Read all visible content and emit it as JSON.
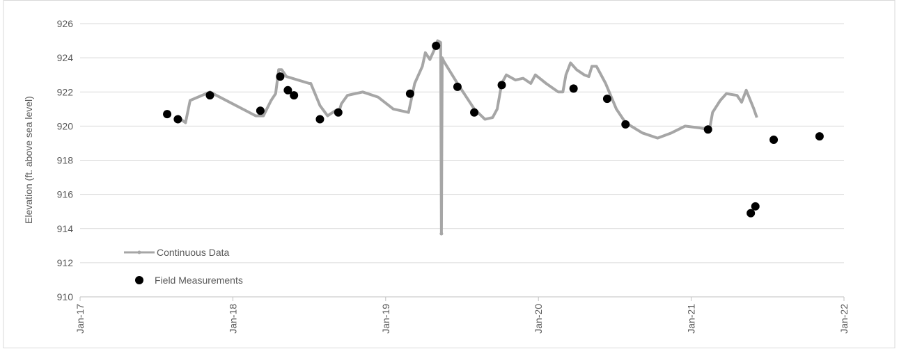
{
  "chart_data": {
    "type": "line",
    "y_label": "Elevation (ft. above sea level)",
    "xlim": [
      2017,
      2022
    ],
    "xticks": [
      {
        "value": 2017,
        "label": "Jan-17"
      },
      {
        "value": 2018,
        "label": "Jan-18"
      },
      {
        "value": 2019,
        "label": "Jan-19"
      },
      {
        "value": 2020,
        "label": "Jan-20"
      },
      {
        "value": 2021,
        "label": "Jan-21"
      },
      {
        "value": 2022,
        "label": "Jan-22"
      }
    ],
    "ylim": [
      910,
      926
    ],
    "yticks": [
      910,
      912,
      914,
      916,
      918,
      920,
      922,
      924,
      926
    ],
    "grid": true,
    "legend": "lower left",
    "series": [
      {
        "name": "Continuous Data",
        "color": "#a6a6a6",
        "kind": "line",
        "x": [
          2017.66,
          2017.69,
          2017.72,
          2017.85,
          2018.15,
          2018.2,
          2018.25,
          2018.28,
          2018.3,
          2018.32,
          2018.35,
          2018.5,
          2018.51,
          2018.57,
          2018.62,
          2018.67,
          2018.69,
          2018.71,
          2018.75,
          2018.85,
          2018.95,
          2019.05,
          2019.15,
          2019.19,
          2019.24,
          2019.26,
          2019.29,
          2019.32,
          2019.34,
          2019.36,
          2019.365,
          2019.37,
          2019.38,
          2019.47,
          2019.58,
          2019.65,
          2019.7,
          2019.73,
          2019.76,
          2019.79,
          2019.85,
          2019.9,
          2019.95,
          2019.98,
          2020.05,
          2020.13,
          2020.16,
          2020.18,
          2020.21,
          2020.25,
          2020.3,
          2020.33,
          2020.35,
          2020.38,
          2020.44,
          2020.51,
          2020.57,
          2020.68,
          2020.78,
          2020.87,
          2020.96,
          2021.05,
          2021.12,
          2021.14,
          2021.19,
          2021.23,
          2021.3,
          2021.33,
          2021.36,
          2021.41,
          2021.43
        ],
        "values": [
          920.4,
          920.2,
          921.5,
          922.0,
          920.6,
          920.6,
          921.5,
          921.9,
          923.3,
          923.3,
          922.9,
          922.5,
          922.5,
          921.2,
          920.6,
          920.9,
          920.7,
          921.3,
          921.8,
          922.0,
          921.7,
          921.0,
          920.8,
          922.5,
          923.5,
          924.3,
          923.9,
          924.5,
          925.0,
          924.9,
          913.7,
          924.0,
          923.8,
          922.5,
          921.0,
          920.4,
          920.5,
          921.0,
          922.5,
          923.0,
          922.7,
          922.8,
          922.5,
          923.0,
          922.5,
          922.0,
          922.0,
          923.0,
          923.7,
          923.3,
          923.0,
          922.9,
          923.5,
          923.5,
          922.5,
          921.0,
          920.2,
          919.6,
          919.3,
          919.6,
          920.0,
          919.9,
          919.8,
          920.8,
          921.5,
          921.9,
          921.8,
          921.4,
          922.1,
          921.0,
          920.5
        ]
      },
      {
        "name": "Field Measurements",
        "color": "#000000",
        "kind": "scatter",
        "x": [
          2017.57,
          2017.64,
          2017.85,
          2018.18,
          2018.31,
          2018.36,
          2018.4,
          2018.57,
          2018.69,
          2019.16,
          2019.33,
          2019.47,
          2019.58,
          2019.76,
          2020.23,
          2020.45,
          2020.57,
          2021.11,
          2021.39,
          2021.42,
          2021.54,
          2021.84
        ],
        "values": [
          920.7,
          920.4,
          921.8,
          920.9,
          922.9,
          922.1,
          921.8,
          920.4,
          920.8,
          921.9,
          924.7,
          922.3,
          920.8,
          922.4,
          922.2,
          921.6,
          920.1,
          919.8,
          914.9,
          915.3,
          919.2,
          919.4
        ]
      }
    ]
  }
}
